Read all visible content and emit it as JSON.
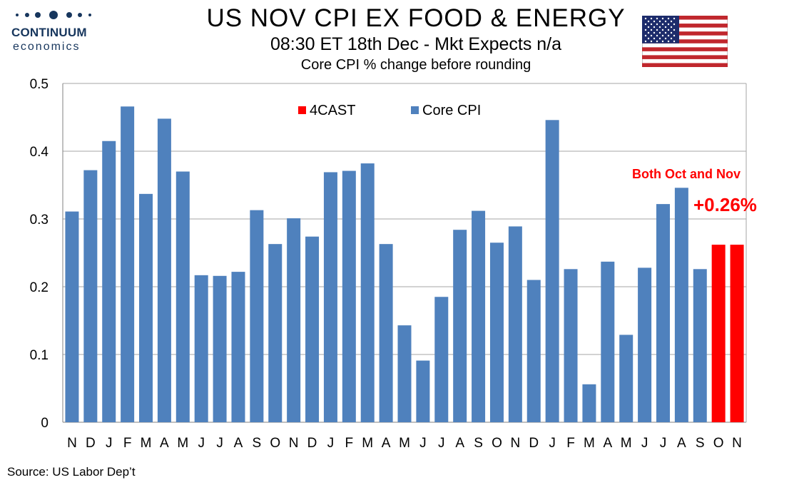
{
  "header": {
    "title": "US NOV CPI EX FOOD & ENERGY",
    "subtitle": "08:30 ET 18th Dec - Mkt Expects n/a",
    "subtitle2": "Core CPI % change before rounding"
  },
  "logo": {
    "brand": "CONTINUUM",
    "sub": "economics"
  },
  "flag_icon": "us-flag",
  "annotations": {
    "line1": "Both Oct and Nov",
    "line2": "+0.26%"
  },
  "source": "Source: US Labor Dep’t",
  "colors": {
    "core_cpi": "#4f81bd",
    "forecast": "#ff0000",
    "brand": "#17365d"
  },
  "chart_data": {
    "type": "bar",
    "categories": [
      "N",
      "D",
      "J",
      "F",
      "M",
      "A",
      "M",
      "J",
      "J",
      "A",
      "S",
      "O",
      "N",
      "D",
      "J",
      "F",
      "M",
      "A",
      "M",
      "J",
      "J",
      "A",
      "S",
      "O",
      "N",
      "D",
      "J",
      "F",
      "M",
      "A",
      "M",
      "J",
      "J",
      "A",
      "S",
      "O",
      "N"
    ],
    "series": [
      {
        "name": "Core CPI",
        "values": [
          0.311,
          0.372,
          0.415,
          0.466,
          0.337,
          0.448,
          0.37,
          0.217,
          0.216,
          0.222,
          0.313,
          0.263,
          0.301,
          0.274,
          0.369,
          0.371,
          0.382,
          0.263,
          0.143,
          0.091,
          0.185,
          0.284,
          0.312,
          0.265,
          0.289,
          0.21,
          0.446,
          0.226,
          0.056,
          0.237,
          0.129,
          0.228,
          0.322,
          0.346,
          0.226,
          null,
          null
        ]
      },
      {
        "name": "4CAST",
        "values": [
          null,
          null,
          null,
          null,
          null,
          null,
          null,
          null,
          null,
          null,
          null,
          null,
          null,
          null,
          null,
          null,
          null,
          null,
          null,
          null,
          null,
          null,
          null,
          null,
          null,
          null,
          null,
          null,
          null,
          null,
          null,
          null,
          null,
          null,
          null,
          0.262,
          0.262
        ]
      }
    ],
    "ylim": [
      0,
      0.5
    ],
    "yticks": [
      "0",
      "0.1",
      "0.2",
      "0.3",
      "0.4",
      "0.5"
    ],
    "grid": true,
    "legend_position": "top-center"
  }
}
